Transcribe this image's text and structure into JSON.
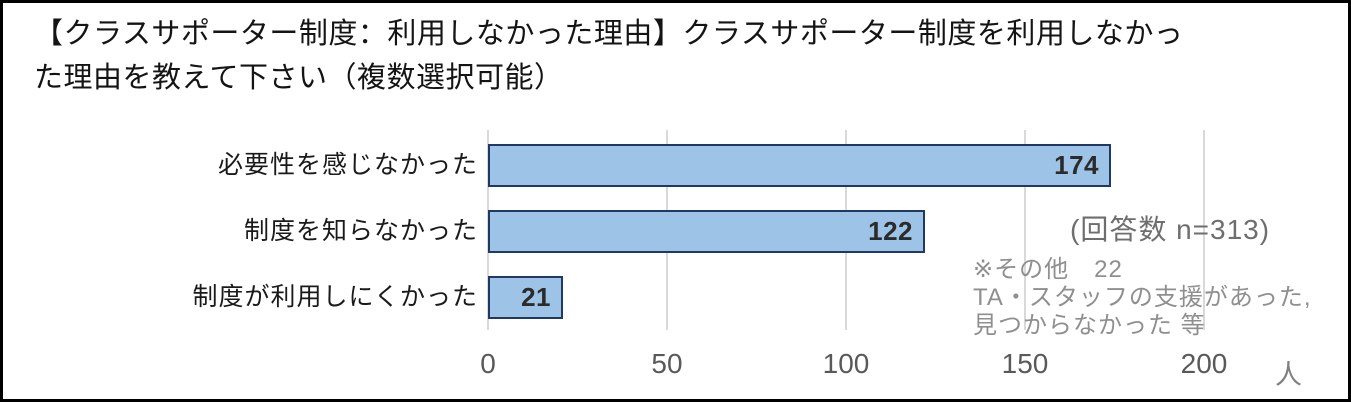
{
  "title": {
    "lines": [
      "【クラスサポーター制度：利用しなかった理由】クラスサポーター制度を利用しなかっ",
      "た理由を教えて下さい（複数選択可能）"
    ],
    "full": "【クラスサポーター制度：利用しなかった理由】クラスサポーター制度を利用しなかった理由を教えて下さい（複数選択可能）"
  },
  "chart_data": {
    "type": "bar",
    "orientation": "horizontal",
    "categories": [
      "必要性を感じなかった",
      "制度を知らなかった",
      "制度が利用しにくかった"
    ],
    "values": [
      174,
      122,
      21
    ],
    "x_ticks": [
      0,
      50,
      100,
      150,
      200
    ],
    "xlim": [
      0,
      200
    ],
    "x_unit": "人",
    "grid": true,
    "legend": false,
    "bar_fill_color": "#9dc3e6",
    "bar_border_color": "#1f3864",
    "grid_color": "#d9d9d9"
  },
  "annotations": {
    "response_count": "(回答数 n=313)",
    "note_lines": [
      "※その他　22",
      "TA・スタッフの支援があった,",
      "見つからなかった 等"
    ]
  }
}
